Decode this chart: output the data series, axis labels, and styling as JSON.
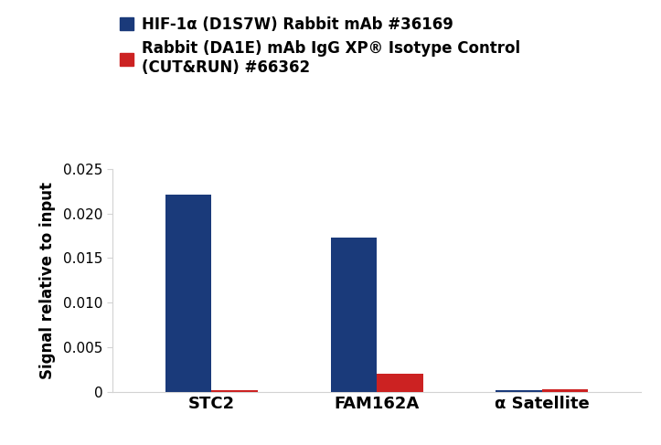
{
  "categories": [
    "STC2",
    "FAM162A",
    "α Satellite"
  ],
  "blue_values": [
    0.0221,
    0.0173,
    0.0002
  ],
  "red_values": [
    0.0002,
    0.002,
    0.0003
  ],
  "blue_color": "#1a3a7a",
  "red_color": "#cc2222",
  "ylabel": "Signal relative to input",
  "ylim": [
    0,
    0.025
  ],
  "yticks": [
    0,
    0.005,
    0.01,
    0.015,
    0.02,
    0.025
  ],
  "bar_width": 0.28,
  "legend_label_blue": "HIF-1α (D1S7W) Rabbit mAb #36169",
  "legend_label_red": "Rabbit (DA1E) mAb IgG XP® Isotype Control\n(CUT&RUN) #66362",
  "background_color": "#ffffff",
  "fig_width": 7.23,
  "fig_height": 4.87,
  "dpi": 100
}
